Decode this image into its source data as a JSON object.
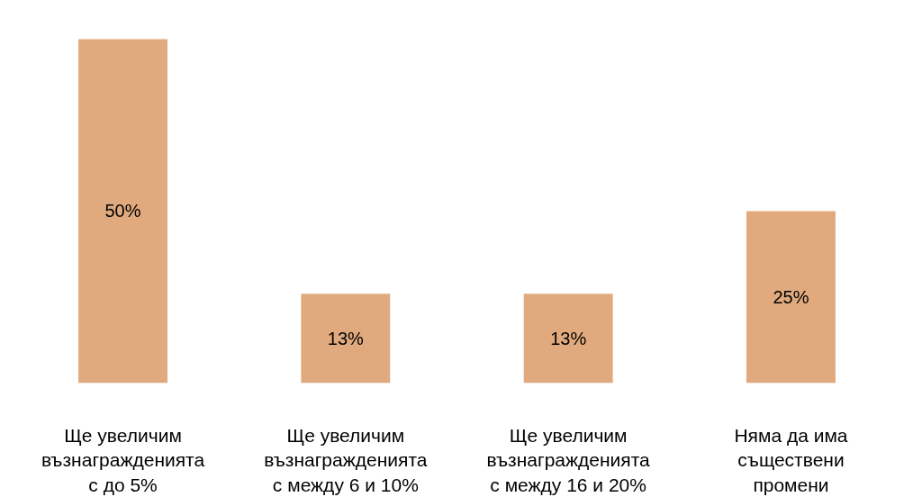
{
  "chart_data": {
    "type": "bar",
    "categories": [
      "Ще увеличим възнагражденията с до 5%",
      "Ще увеличим възнагражденията с между 6 и 10%",
      "Ще увеличим възнагражденията с между 16 и 20%",
      "Няма да има съществени промени"
    ],
    "values": [
      50,
      13,
      13,
      25
    ],
    "color": "#e0aa7e",
    "value_labels": [
      "50%",
      "13%",
      "13%",
      "25%"
    ]
  }
}
